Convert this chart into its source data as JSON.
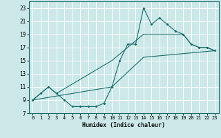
{
  "xlabel": "Humidex (Indice chaleur)",
  "bg_color": "#cce8e8",
  "grid_color": "#ffffff",
  "line_color": "#1a6b6b",
  "xlim": [
    -0.5,
    23.5
  ],
  "ylim": [
    7,
    24
  ],
  "xticks": [
    0,
    1,
    2,
    3,
    4,
    5,
    6,
    7,
    8,
    9,
    10,
    11,
    12,
    13,
    14,
    15,
    16,
    17,
    18,
    19,
    20,
    21,
    22,
    23
  ],
  "yticks": [
    7,
    9,
    11,
    13,
    15,
    17,
    19,
    21,
    23
  ],
  "line1_x": [
    0,
    1,
    2,
    3,
    4,
    5,
    6,
    7,
    8,
    9,
    10,
    11,
    12,
    13,
    14,
    15,
    16,
    17,
    18,
    19,
    20,
    21,
    22,
    23
  ],
  "line1_y": [
    9,
    10,
    11,
    10,
    9,
    8,
    8,
    8,
    8,
    8.5,
    11,
    15,
    17.5,
    17.5,
    23,
    20.5,
    21.5,
    20.5,
    19.5,
    19,
    17.5,
    17,
    17,
    16.5
  ],
  "line2_x": [
    0,
    2,
    3,
    10,
    14,
    19,
    20,
    21,
    22,
    23
  ],
  "line2_y": [
    9,
    11,
    10,
    15,
    19,
    19,
    17.5,
    17,
    17,
    16.5
  ],
  "line3_x": [
    0,
    10,
    14,
    23
  ],
  "line3_y": [
    9,
    11,
    15.5,
    16.5
  ]
}
